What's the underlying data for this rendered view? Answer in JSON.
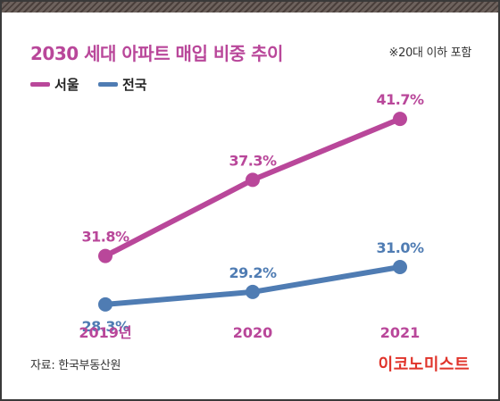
{
  "header": {
    "title": "2030 세대 아파트 매입 비중 추이",
    "note": "※20대 이하 포함"
  },
  "colors": {
    "accent": "#b9479a",
    "seoul": "#b9479a",
    "national": "#4f7cb3",
    "axis_label": "#b9479a",
    "brand": "#e0332a",
    "stripe": "#4a3f3b"
  },
  "legend": [
    {
      "label": "서울",
      "color": "#b9479a"
    },
    {
      "label": "전국",
      "color": "#4f7cb3"
    }
  ],
  "chart_data": {
    "type": "line",
    "title": "2030 세대 아파트 매입 비중 추이",
    "categories": [
      "2019년",
      "2020",
      "2021"
    ],
    "series": [
      {
        "name": "서울",
        "values": [
          31.8,
          37.3,
          41.7
        ],
        "labels": [
          "31.8%",
          "37.3%",
          "41.7%"
        ],
        "color": "#b9479a"
      },
      {
        "name": "전국",
        "values": [
          28.3,
          29.2,
          31.0
        ],
        "labels": [
          "28.3%",
          "29.2%",
          "31.0%"
        ],
        "color": "#4f7cb3"
      }
    ],
    "ylim": [
      25,
      45
    ],
    "grid": false,
    "legend_position": "top-left",
    "xlabel": "",
    "ylabel": ""
  },
  "footer": {
    "source": "자료: 한국부동산원",
    "brand": "이코노미스트"
  }
}
